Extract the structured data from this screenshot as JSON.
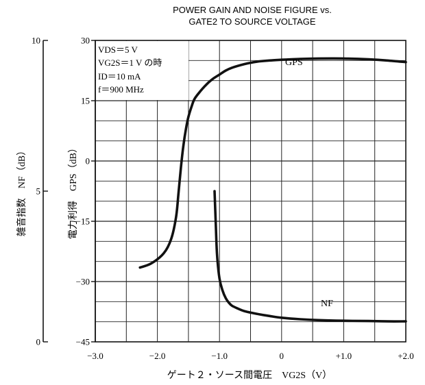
{
  "chart_data": {
    "type": "line",
    "title": "POWER GAIN AND NOISE FIGURE vs. GATE2 TO SOURCE VOLTAGE",
    "title_lines": [
      "POWER GAIN AND NOISE FIGURE vs.",
      "GATE2 TO SOURCE VOLTAGE"
    ],
    "xlabel": "ゲート２・ソース間電圧　VG2S（V）",
    "ylabel": "電力利得　GPS（dB）",
    "ylabel2": "雑音指数　NF（dB）",
    "xlim": [
      -3.0,
      2.0
    ],
    "ylim": [
      -45,
      30
    ],
    "y2lim": [
      0,
      10
    ],
    "x_ticks": [
      "−3.0",
      "−2.0",
      "−1.0",
      "0",
      "+1.0",
      "+2.0"
    ],
    "y_ticks": [
      "30",
      "15",
      "0",
      "−15",
      "−30",
      "−45"
    ],
    "y2_ticks": [
      "10",
      "5",
      "0"
    ],
    "grid": true,
    "conditions": [
      "VDS＝5 V",
      "VG2S＝1 V の時",
      "ID＝10 mA",
      "f＝900 MHz"
    ],
    "series": [
      {
        "name": "GPS",
        "axis": "left",
        "x": [
          -2.28,
          -2.1,
          -1.9,
          -1.78,
          -1.7,
          -1.66,
          -1.62,
          -1.58,
          -1.54,
          -1.5,
          -1.45,
          -1.4,
          -1.3,
          -1.2,
          -1.1,
          -1.0,
          -0.9,
          -0.8,
          -0.6,
          -0.4,
          -0.2,
          0.0,
          0.3,
          0.6,
          1.0,
          1.4,
          1.7,
          2.0
        ],
        "y": [
          -26.5,
          -25.5,
          -23.0,
          -19.5,
          -14.0,
          -8.0,
          -1.5,
          4.0,
          8.0,
          11.0,
          13.5,
          15.5,
          17.5,
          19.2,
          20.5,
          21.5,
          22.5,
          23.2,
          24.1,
          24.7,
          25.0,
          25.2,
          25.4,
          25.5,
          25.5,
          25.3,
          25.0,
          24.6
        ]
      },
      {
        "name": "NF",
        "axis": "right",
        "x": [
          -1.08,
          -1.06,
          -1.04,
          -1.0,
          -0.95,
          -0.9,
          -0.85,
          -0.8,
          -0.7,
          -0.6,
          -0.4,
          -0.2,
          0.0,
          0.3,
          0.6,
          1.0,
          1.4,
          1.7,
          2.0
        ],
        "y": [
          5.0,
          3.9,
          2.9,
          2.1,
          1.7,
          1.45,
          1.3,
          1.2,
          1.1,
          1.02,
          0.93,
          0.86,
          0.8,
          0.75,
          0.72,
          0.7,
          0.69,
          0.68,
          0.68
        ]
      }
    ]
  }
}
